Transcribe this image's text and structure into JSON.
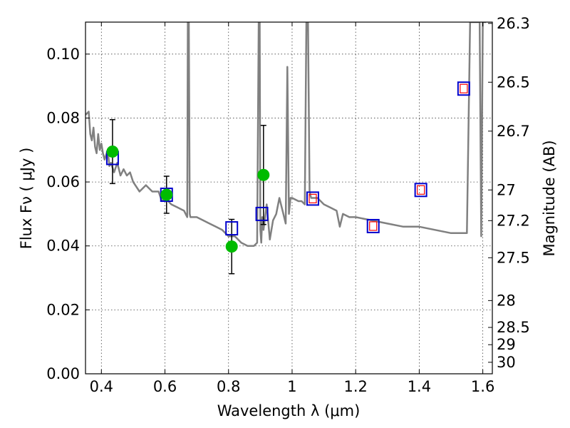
{
  "chart_data": {
    "type": "line",
    "xlabel": "Wavelength  λ (μm)",
    "ylabel": "Flux  Fν  ( μJy )",
    "ylabel_right": "Magnitude (AB)",
    "xlim": [
      0.35,
      1.63
    ],
    "ylim": [
      0,
      0.11
    ],
    "grid": true,
    "x_ticks": [
      0.4,
      0.6,
      0.8,
      1.0,
      1.2,
      1.4,
      1.6
    ],
    "x_tick_labels": [
      "0.4",
      "0.6",
      "0.8",
      "1",
      "1.2",
      "1.4",
      "1.6"
    ],
    "y_ticks": [
      0.0,
      0.02,
      0.04,
      0.06,
      0.08,
      0.1
    ],
    "y_tick_labels": [
      "0.00",
      "0.02",
      "0.04",
      "0.06",
      "0.08",
      "0.10"
    ],
    "right_ticks": [
      {
        "label": "26.3",
        "flux": 0.1096
      },
      {
        "label": "26.5",
        "flux": 0.0912
      },
      {
        "label": "26.7",
        "flux": 0.0759
      },
      {
        "label": "27",
        "flux": 0.0575
      },
      {
        "label": "27.2",
        "flux": 0.0479
      },
      {
        "label": "27.5",
        "flux": 0.0363
      },
      {
        "label": "28",
        "flux": 0.0229
      },
      {
        "label": "28.5",
        "flux": 0.0145
      },
      {
        "label": "29",
        "flux": 0.0091
      },
      {
        "label": "30",
        "flux": 0.0036
      }
    ],
    "series": [
      {
        "type": "line",
        "color": "#808080",
        "x": [
          0.35,
          0.36,
          0.365,
          0.37,
          0.375,
          0.38,
          0.385,
          0.39,
          0.395,
          0.4,
          0.405,
          0.41,
          0.42,
          0.425,
          0.43,
          0.44,
          0.45,
          0.46,
          0.47,
          0.48,
          0.49,
          0.5,
          0.52,
          0.54,
          0.56,
          0.58,
          0.59,
          0.6,
          0.62,
          0.64,
          0.66,
          0.67,
          0.672,
          0.675,
          0.678,
          0.68,
          0.7,
          0.72,
          0.74,
          0.76,
          0.78,
          0.8,
          0.82,
          0.84,
          0.86,
          0.88,
          0.89,
          0.895,
          0.898,
          0.9,
          0.903,
          0.906,
          0.91,
          0.92,
          0.93,
          0.94,
          0.95,
          0.96,
          0.97,
          0.98,
          0.985,
          0.99,
          0.995,
          1.0,
          1.02,
          1.03,
          1.04,
          1.045,
          1.05,
          1.055,
          1.06,
          1.08,
          1.1,
          1.12,
          1.14,
          1.15,
          1.16,
          1.18,
          1.2,
          1.25,
          1.3,
          1.35,
          1.4,
          1.45,
          1.5,
          1.54,
          1.55,
          1.56,
          1.575,
          1.59,
          1.595,
          1.6,
          1.605,
          1.61
        ],
        "y": [
          0.081,
          0.082,
          0.075,
          0.073,
          0.077,
          0.071,
          0.069,
          0.075,
          0.07,
          0.072,
          0.069,
          0.067,
          0.07,
          0.065,
          0.066,
          0.063,
          0.066,
          0.062,
          0.064,
          0.062,
          0.063,
          0.06,
          0.057,
          0.059,
          0.057,
          0.057,
          0.054,
          0.055,
          0.053,
          0.052,
          0.051,
          0.049,
          0.11,
          0.11,
          0.05,
          0.049,
          0.049,
          0.048,
          0.047,
          0.046,
          0.045,
          0.043,
          0.043,
          0.041,
          0.04,
          0.04,
          0.041,
          0.11,
          0.11,
          0.045,
          0.041,
          0.049,
          0.045,
          0.053,
          0.042,
          0.048,
          0.05,
          0.055,
          0.051,
          0.047,
          0.096,
          0.05,
          0.055,
          0.055,
          0.054,
          0.054,
          0.053,
          0.11,
          0.11,
          0.057,
          0.055,
          0.055,
          0.053,
          0.052,
          0.051,
          0.046,
          0.05,
          0.049,
          0.049,
          0.048,
          0.047,
          0.046,
          0.046,
          0.045,
          0.044,
          0.044,
          0.044,
          0.11,
          0.11,
          0.11,
          0.043,
          0.11,
          0.11,
          0.11
        ]
      },
      {
        "name": "",
        "type": "scatter",
        "marker": "circle",
        "color": "#00bb00",
        "x": [
          0.435,
          0.605,
          0.81,
          0.91
        ],
        "y": [
          0.0695,
          0.056,
          0.0398,
          0.0622
        ],
        "yerr": [
          0.01,
          0.0058,
          0.0085,
          0.0155
        ]
      },
      {
        "name": "",
        "type": "scatter",
        "marker": "square",
        "color": "#0000cc",
        "x": [
          0.435,
          0.605,
          0.81,
          0.905,
          1.065,
          1.255,
          1.405,
          1.54
        ],
        "y": [
          0.0675,
          0.056,
          0.0455,
          0.05,
          0.0548,
          0.0462,
          0.0575,
          0.0892
        ]
      },
      {
        "name": "",
        "type": "scatter",
        "marker": "square-small",
        "color": "#ff0000",
        "x": [
          1.065,
          1.255,
          1.405,
          1.54
        ],
        "y": [
          0.0548,
          0.0462,
          0.0575,
          0.0892
        ]
      }
    ]
  }
}
